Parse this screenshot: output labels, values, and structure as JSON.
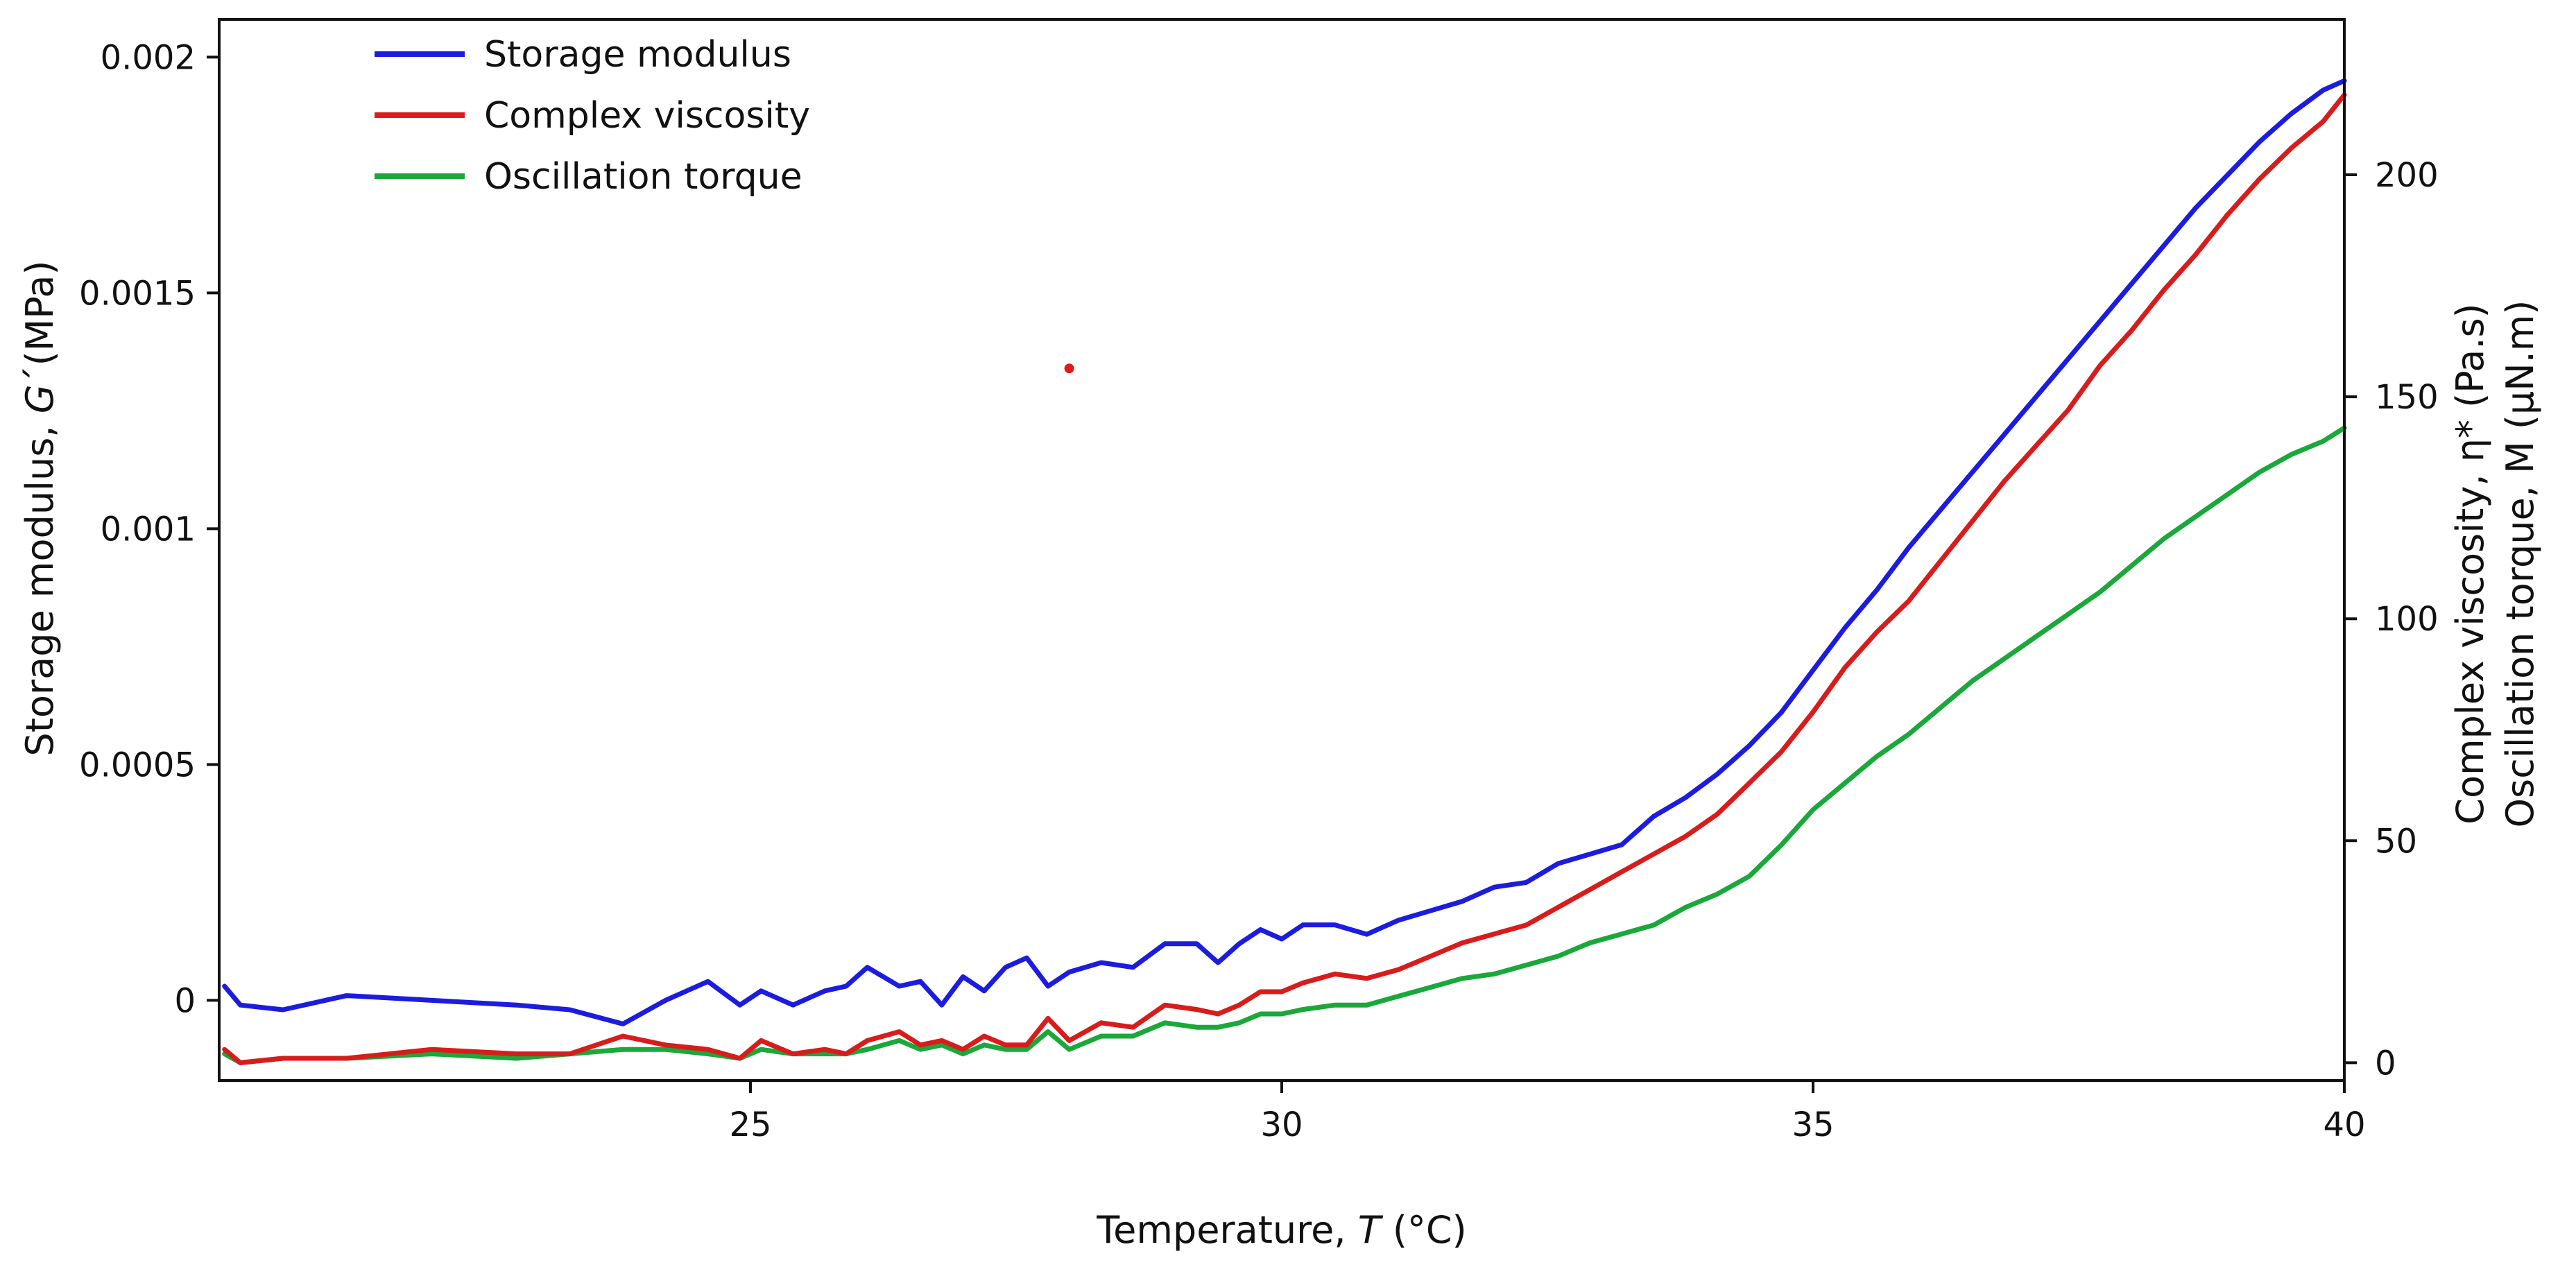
{
  "chart_data": {
    "type": "line",
    "title": "",
    "xlabel": "Temperature, T (°C)",
    "xlabel_parts": {
      "prefix": "Temperature, ",
      "italic": "T",
      "suffix": " (°C)"
    },
    "ylabel_left": "Storage modulus, G´(MPa)",
    "ylabel_left_parts": {
      "prefix": "Storage modulus, ",
      "italic": "G",
      "suffix": "´(MPa)"
    },
    "ylabel_right_1": "Complex viscosity, η* (Pa.s)",
    "ylabel_right_2": "Oscillation torque, M (µN.m)",
    "xlim": [
      20,
      40
    ],
    "ylim_left": [
      -0.00017,
      0.00208
    ],
    "ylim_right": [
      -4,
      235
    ],
    "x_ticks": [
      25,
      30,
      35,
      40
    ],
    "x_tick_labels": [
      "25",
      "30",
      "35",
      "40"
    ],
    "y_left_ticks": [
      0,
      0.0005,
      0.001,
      0.0015,
      0.002
    ],
    "y_left_tick_labels": [
      "0",
      "0.0005",
      "0.001",
      "0.0015",
      "0.002"
    ],
    "y_right_ticks": [
      0,
      50,
      100,
      150,
      200
    ],
    "y_right_tick_labels": [
      "0",
      "50",
      "100",
      "150",
      "200"
    ],
    "legend_position": "top-left",
    "series": [
      {
        "name": "Storage modulus",
        "axis": "left",
        "color": "#1c1ce0",
        "x": [
          20.05,
          20.2,
          20.6,
          21.2,
          22.0,
          22.8,
          23.3,
          23.8,
          24.2,
          24.6,
          24.9,
          25.1,
          25.4,
          25.7,
          25.9,
          26.1,
          26.4,
          26.6,
          26.8,
          27.0,
          27.2,
          27.4,
          27.6,
          27.8,
          28.0,
          28.3,
          28.6,
          28.9,
          29.2,
          29.4,
          29.6,
          29.8,
          30.0,
          30.2,
          30.5,
          30.8,
          31.1,
          31.4,
          31.7,
          32.0,
          32.3,
          32.6,
          32.9,
          33.2,
          33.5,
          33.8,
          34.1,
          34.4,
          34.7,
          35.0,
          35.3,
          35.6,
          35.9,
          36.2,
          36.5,
          36.8,
          37.1,
          37.4,
          37.7,
          38.0,
          38.3,
          38.6,
          38.9,
          39.2,
          39.5,
          39.8,
          40.0
        ],
        "values": [
          3e-05,
          -1e-05,
          -2e-05,
          1e-05,
          0.0,
          -1e-05,
          -2e-05,
          -5e-05,
          0.0,
          4e-05,
          -1e-05,
          2e-05,
          -1e-05,
          2e-05,
          3e-05,
          7e-05,
          3e-05,
          4e-05,
          -1e-05,
          5e-05,
          2e-05,
          7e-05,
          9e-05,
          3e-05,
          6e-05,
          8e-05,
          7e-05,
          0.00012,
          0.00012,
          8e-05,
          0.00012,
          0.00015,
          0.00013,
          0.00016,
          0.00016,
          0.00014,
          0.00017,
          0.00019,
          0.00021,
          0.00024,
          0.00025,
          0.00029,
          0.00031,
          0.00033,
          0.00039,
          0.00043,
          0.00048,
          0.00054,
          0.00061,
          0.0007,
          0.00079,
          0.00087,
          0.00096,
          0.00104,
          0.00112,
          0.0012,
          0.00128,
          0.00136,
          0.00144,
          0.00152,
          0.0016,
          0.00168,
          0.00175,
          0.00182,
          0.00188,
          0.00193,
          0.00195
        ]
      },
      {
        "name": "Complex viscosity",
        "axis": "right",
        "color": "#d81c1c",
        "x": [
          20.05,
          20.2,
          20.6,
          21.2,
          22.0,
          22.8,
          23.3,
          23.8,
          24.2,
          24.6,
          24.9,
          25.1,
          25.4,
          25.7,
          25.9,
          26.1,
          26.4,
          26.6,
          26.8,
          27.0,
          27.2,
          27.4,
          27.6,
          27.8,
          28.0,
          28.3,
          28.6,
          28.9,
          29.2,
          29.4,
          29.6,
          29.8,
          30.0,
          30.2,
          30.5,
          30.8,
          31.1,
          31.4,
          31.7,
          32.0,
          32.3,
          32.6,
          32.9,
          33.2,
          33.5,
          33.8,
          34.1,
          34.4,
          34.7,
          35.0,
          35.3,
          35.6,
          35.9,
          36.2,
          36.5,
          36.8,
          37.1,
          37.4,
          37.7,
          38.0,
          38.3,
          38.6,
          38.9,
          39.2,
          39.5,
          39.8,
          40.0
        ],
        "values": [
          3,
          0,
          1,
          1,
          3,
          2,
          2,
          6,
          4,
          3,
          1,
          5,
          2,
          3,
          2,
          5,
          7,
          4,
          5,
          3,
          6,
          4,
          4,
          10,
          5,
          9,
          8,
          13,
          12,
          11,
          13,
          16,
          16,
          18,
          20,
          19,
          21,
          24,
          27,
          29,
          31,
          35,
          39,
          43,
          47,
          51,
          56,
          63,
          70,
          79,
          89,
          97,
          104,
          113,
          122,
          131,
          139,
          147,
          157,
          165,
          174,
          182,
          191,
          199,
          206,
          212,
          218
        ]
      },
      {
        "name": "Oscillation torque",
        "axis": "right",
        "color": "#1aa83a",
        "x": [
          20.05,
          20.2,
          20.6,
          21.2,
          22.0,
          22.8,
          23.3,
          23.8,
          24.2,
          24.6,
          24.9,
          25.1,
          25.4,
          25.7,
          25.9,
          26.1,
          26.4,
          26.6,
          26.8,
          27.0,
          27.2,
          27.4,
          27.6,
          27.8,
          28.0,
          28.3,
          28.6,
          28.9,
          29.2,
          29.4,
          29.6,
          29.8,
          30.0,
          30.2,
          30.5,
          30.8,
          31.1,
          31.4,
          31.7,
          32.0,
          32.3,
          32.6,
          32.9,
          33.2,
          33.5,
          33.8,
          34.1,
          34.4,
          34.7,
          35.0,
          35.3,
          35.6,
          35.9,
          36.2,
          36.5,
          36.8,
          37.1,
          37.4,
          37.7,
          38.0,
          38.3,
          38.6,
          38.9,
          39.2,
          39.5,
          39.8,
          40.0
        ],
        "values": [
          2,
          0,
          1,
          1,
          2,
          1,
          2,
          3,
          3,
          2,
          1,
          3,
          2,
          2,
          2,
          3,
          5,
          3,
          4,
          2,
          4,
          3,
          3,
          7,
          3,
          6,
          6,
          9,
          8,
          8,
          9,
          11,
          11,
          12,
          13,
          13,
          15,
          17,
          19,
          20,
          22,
          24,
          27,
          29,
          31,
          35,
          38,
          42,
          49,
          57,
          63,
          69,
          74,
          80,
          86,
          91,
          96,
          101,
          106,
          112,
          118,
          123,
          128,
          133,
          137,
          140,
          143
        ]
      }
    ],
    "annotations": [
      {
        "type": "point",
        "x": 28.0,
        "y_left": 0.00134,
        "color": "#e01b1b"
      }
    ]
  }
}
